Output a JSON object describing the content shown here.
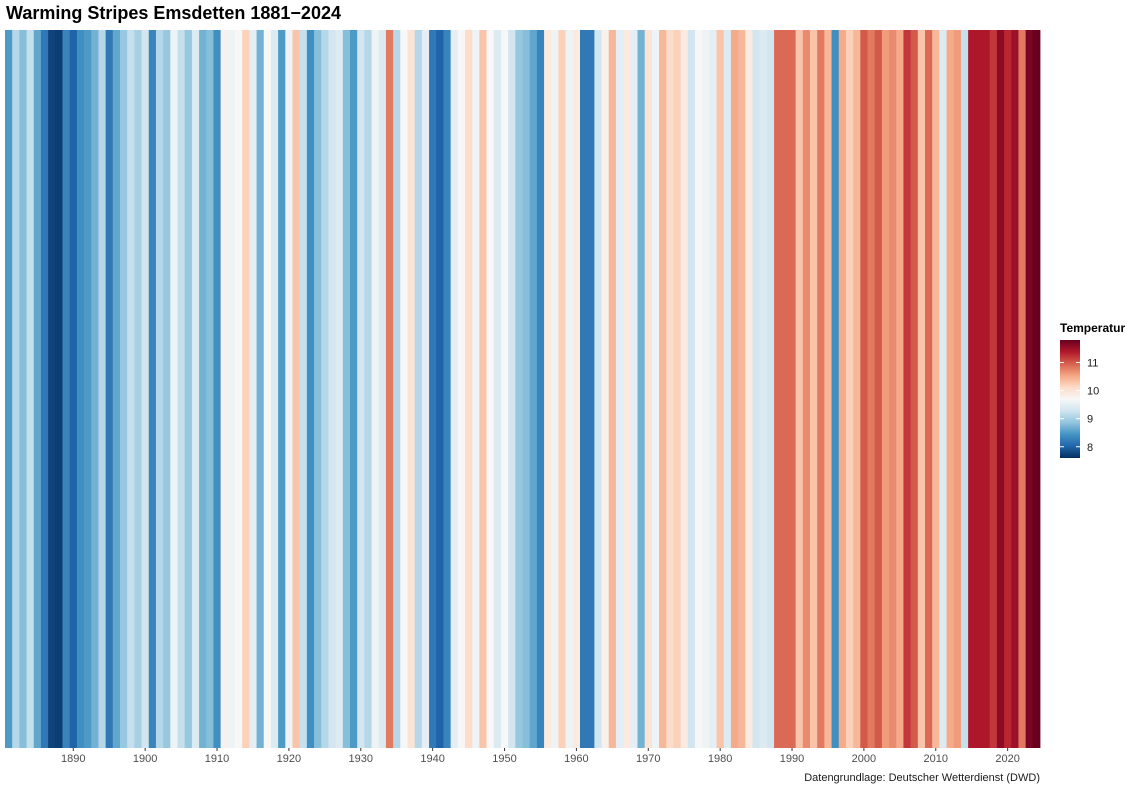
{
  "chart_data": {
    "type": "heatmap",
    "title": "Warming Stripes Emsdetten 1881−2024",
    "caption": "Datengrundlage: Deutscher Wetterdienst (DWD)",
    "xlabel": "",
    "ylabel": "",
    "x_start": 1881,
    "x_end": 2024,
    "xlim": [
      1880.5,
      2024.5
    ],
    "x_ticks": [
      1890,
      1900,
      1910,
      1920,
      1930,
      1940,
      1950,
      1960,
      1970,
      1980,
      1990,
      2000,
      2010,
      2020
    ],
    "x_tick_labels": [
      "1890",
      "1900",
      "1910",
      "1920",
      "1930",
      "1940",
      "1950",
      "1960",
      "1970",
      "1980",
      "1990",
      "2000",
      "2010",
      "2020"
    ],
    "legend": {
      "title": "Temperatur",
      "position": "right",
      "range": [
        7.6,
        11.8
      ],
      "ticks": [
        8,
        9,
        10,
        11
      ],
      "tick_labels": [
        "8",
        "9",
        "10",
        "11"
      ],
      "colors": [
        "#053061",
        "#2166ac",
        "#4393c3",
        "#92c5de",
        "#d1e5f0",
        "#f7f7f7",
        "#fddbc7",
        "#f4a582",
        "#d6604d",
        "#b2182b",
        "#67001f"
      ]
    },
    "values": [
      8.5,
      9.1,
      8.8,
      9.2,
      8.6,
      8.2,
      7.75,
      7.7,
      8.3,
      8.0,
      8.4,
      8.5,
      8.7,
      9.1,
      8.2,
      8.6,
      8.9,
      9.2,
      9.0,
      9.3,
      8.3,
      9.1,
      8.9,
      9.6,
      9.2,
      8.9,
      9.4,
      8.7,
      8.8,
      8.4,
      9.8,
      9.6,
      9.7,
      10.2,
      9.5,
      8.7,
      9.7,
      9.4,
      8.5,
      9.6,
      10.3,
      9.2,
      8.4,
      8.8,
      9.1,
      9.3,
      9.4,
      8.8,
      8.5,
      9.3,
      9.1,
      9.6,
      9.4,
      10.8,
      9.1,
      9.7,
      10.0,
      9.1,
      9.5,
      8.2,
      8.0,
      8.3,
      9.5,
      9.7,
      10.1,
      9.6,
      10.3,
      9.7,
      9.4,
      9.7,
      9.3,
      8.9,
      8.8,
      8.6,
      8.3,
      9.9,
      9.6,
      10.2,
      9.6,
      9.9,
      8.2,
      8.2,
      9.3,
      9.8,
      10.4,
      9.5,
      9.9,
      9.5,
      8.7,
      10.0,
      9.6,
      10.4,
      10.1,
      10.2,
      9.9,
      9.3,
      9.7,
      9.6,
      9.5,
      10.3,
      9.4,
      10.5,
      10.4,
      9.9,
      9.3,
      9.4,
      9.3,
      10.9,
      10.9,
      10.9,
      10.3,
      10.7,
      10.3,
      10.8,
      10.4,
      8.4,
      10.5,
      10.2,
      10.4,
      11.0,
      10.8,
      11.0,
      10.6,
      10.7,
      10.5,
      11.2,
      11.0,
      10.3,
      10.9,
      10.4,
      9.4,
      10.5,
      10.6,
      9.2,
      11.4,
      11.4,
      11.4,
      11.2,
      11.6,
      11.3,
      11.5,
      10.8,
      11.7,
      11.8
    ]
  }
}
